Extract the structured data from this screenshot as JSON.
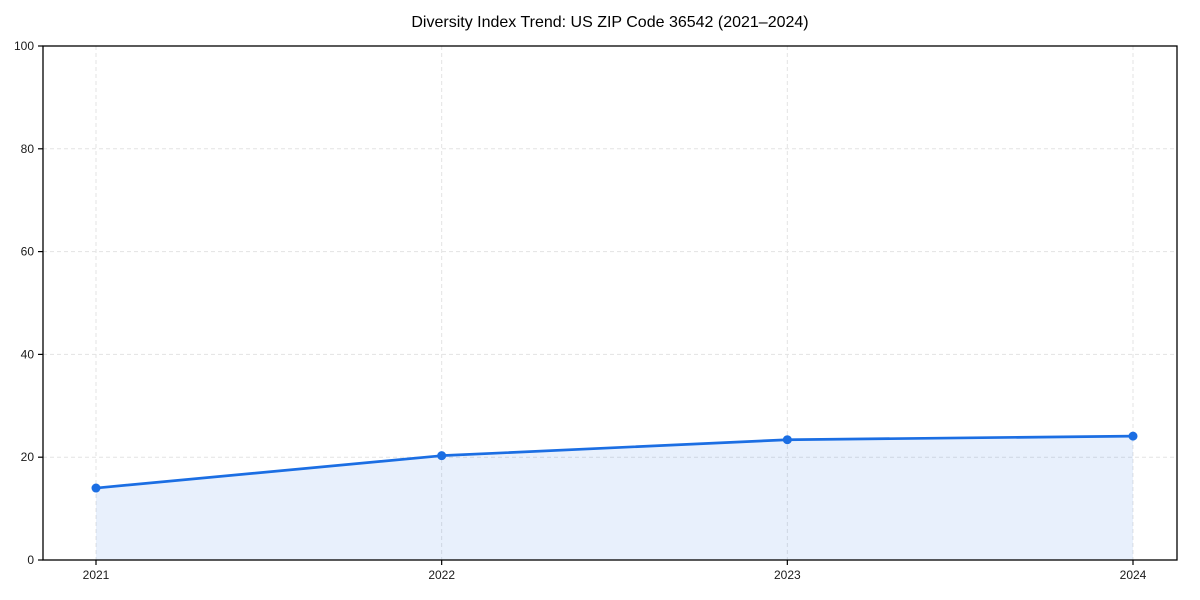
{
  "chart_data": {
    "type": "line",
    "title": "Diversity Index Trend: US ZIP Code 36542 (2021–2024)",
    "xlabel": "",
    "ylabel": "",
    "x": [
      "2021",
      "2022",
      "2023",
      "2024"
    ],
    "series": [
      {
        "name": "Diversity Index",
        "values": [
          14.0,
          20.3,
          23.4,
          24.1
        ]
      }
    ],
    "ylim": [
      0,
      100
    ],
    "yticks": [
      0,
      20,
      40,
      60,
      80,
      100
    ],
    "grid": "dashed, both axes",
    "legend_position": "none",
    "area_fill": true,
    "marker": "circle",
    "colors": {
      "line": "#1b6ee3",
      "area_fill": "rgba(27,110,227,0.10)",
      "grid": "#e3e3e3",
      "axis": "#000000",
      "tick_text": "#1a1a1a",
      "background": "#ffffff"
    }
  }
}
